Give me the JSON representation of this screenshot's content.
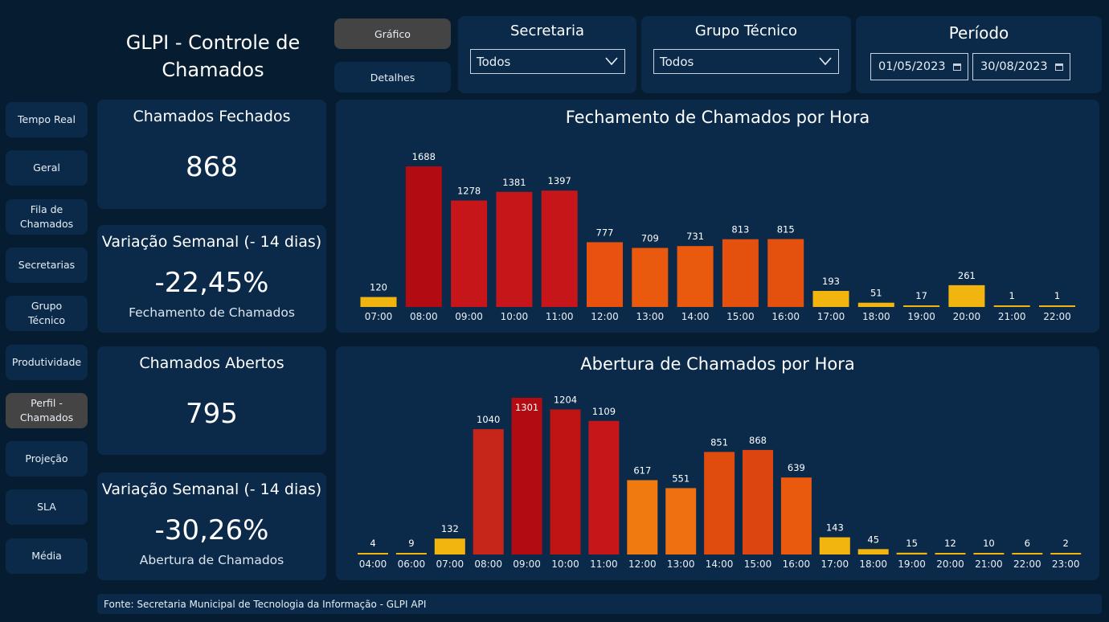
{
  "app_title": "GLPI - Controle de Chamados",
  "nav": [
    {
      "label": "Tempo Real",
      "active": false
    },
    {
      "label": "Geral",
      "active": false
    },
    {
      "label": "Fila de Chamados",
      "active": false
    },
    {
      "label": "Secretarias",
      "active": false
    },
    {
      "label": "Grupo Técnico",
      "active": false
    },
    {
      "label": "Produtividade",
      "active": false
    },
    {
      "label": "Perfil - Chamados",
      "active": true
    },
    {
      "label": "Projeção",
      "active": false
    },
    {
      "label": "SLA",
      "active": false
    },
    {
      "label": "Média",
      "active": false
    }
  ],
  "view_toggle": {
    "grafico": "Gráfico",
    "detalhes": "Detalhes"
  },
  "filters": {
    "secretaria": {
      "label": "Secretaria",
      "value": "Todos"
    },
    "grupo_tecnico": {
      "label": "Grupo Técnico",
      "value": "Todos"
    },
    "periodo": {
      "label": "Período",
      "start": "01/05/2023",
      "end": "30/08/2023"
    }
  },
  "kpis": {
    "fechados": {
      "label": "Chamados Fechados",
      "value": "868"
    },
    "var_fechados": {
      "label": "Variação Semanal (- 14 dias)",
      "value": "-22,45%",
      "sublabel": "Fechamento de Chamados"
    },
    "abertos": {
      "label": "Chamados Abertos",
      "value": "795"
    },
    "var_abertos": {
      "label": "Variação Semanal (- 14 dias)",
      "value": "-30,26%",
      "sublabel": "Abertura de Chamados"
    }
  },
  "footer": "Fonte: Secretaria Municipal de Tecnologia da Informação - GLPI API",
  "colors": {
    "background": "#061c30",
    "panel": "#0b2a4a",
    "active_button": "#444444"
  },
  "chart_data": [
    {
      "type": "bar",
      "title": "Fechamento de Chamados por Hora",
      "categories": [
        "07:00",
        "08:00",
        "09:00",
        "10:00",
        "11:00",
        "12:00",
        "13:00",
        "14:00",
        "15:00",
        "16:00",
        "17:00",
        "18:00",
        "19:00",
        "20:00",
        "21:00",
        "22:00"
      ],
      "values": [
        120,
        1688,
        1278,
        1381,
        1397,
        777,
        709,
        731,
        813,
        815,
        193,
        51,
        17,
        261,
        1,
        1
      ],
      "colors": [
        "#f2b50f",
        "#b30b12",
        "#c6161a",
        "#c6161a",
        "#c6161a",
        "#e8520e",
        "#ea5a0e",
        "#ea5a0e",
        "#e4500d",
        "#e4500d",
        "#f2b50f",
        "#f2b50f",
        "#f2b50f",
        "#f2b50f",
        "#f2b50f",
        "#f2b50f"
      ],
      "ylim": [
        0,
        1688
      ]
    },
    {
      "type": "bar",
      "title": "Abertura de Chamados por Hora",
      "categories": [
        "04:00",
        "06:00",
        "07:00",
        "08:00",
        "09:00",
        "10:00",
        "11:00",
        "12:00",
        "13:00",
        "14:00",
        "15:00",
        "16:00",
        "17:00",
        "18:00",
        "19:00",
        "20:00",
        "21:00",
        "22:00",
        "23:00"
      ],
      "values": [
        4,
        9,
        132,
        1040,
        1301,
        1204,
        1109,
        617,
        551,
        851,
        868,
        639,
        143,
        45,
        15,
        12,
        10,
        6,
        2
      ],
      "colors": [
        "#f2b50f",
        "#f2b50f",
        "#f2b50f",
        "#c6261a",
        "#b30b12",
        "#be1414",
        "#c6161a",
        "#f07a10",
        "#ee7010",
        "#e04c0e",
        "#dc4410",
        "#ea5a0e",
        "#f2b50f",
        "#f2b50f",
        "#f2b50f",
        "#f2b50f",
        "#f2b50f",
        "#f2b50f",
        "#f2b50f"
      ],
      "ylim": [
        0,
        1301
      ]
    }
  ]
}
